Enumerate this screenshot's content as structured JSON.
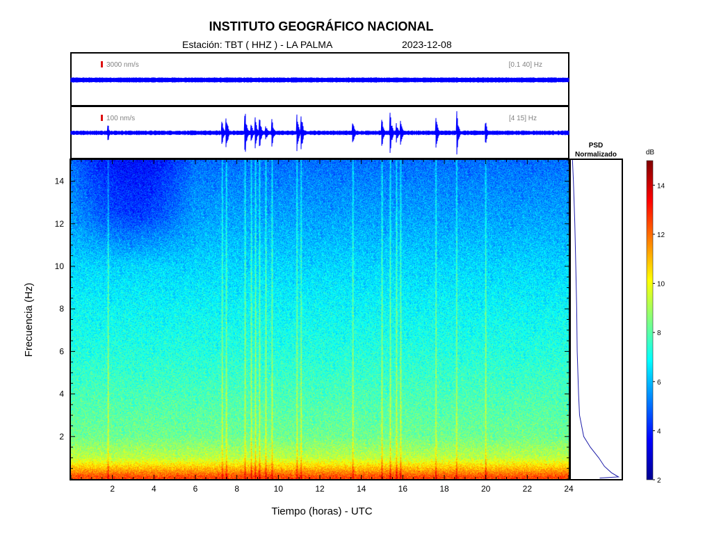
{
  "title": "INSTITUTO GEOGRÁFICO NACIONAL",
  "station_label": "Estación:  TBT ( HHZ ) - LA PALMA",
  "date": "2023-12-08",
  "chart_data": [
    {
      "type": "line",
      "panel": "waveform-broadband",
      "scale_label": "3000 nm/s",
      "filter_label": "[0.1 40] Hz",
      "series": [
        {
          "color": "#0000ff"
        }
      ]
    },
    {
      "type": "line",
      "panel": "waveform-filtered",
      "scale_label": "100 nm/s",
      "filter_label": "[4 15] Hz",
      "event_times_hours": [
        1.8,
        7.3,
        7.5,
        8.4,
        8.7,
        8.9,
        9.1,
        9.4,
        9.7,
        10.9,
        11.1,
        13.6,
        15.0,
        15.4,
        15.7,
        15.9,
        17.6,
        18.6,
        20.0
      ],
      "series": [
        {
          "color": "#0000ff"
        }
      ]
    },
    {
      "type": "heatmap",
      "panel": "spectrogram",
      "xlabel": "Tiempo (horas) - UTC",
      "ylabel": "Frecuencia  (Hz)",
      "xlim": [
        0,
        24
      ],
      "ylim": [
        0,
        15
      ],
      "x_ticks": [
        2,
        4,
        6,
        8,
        10,
        12,
        14,
        16,
        18,
        20,
        22,
        24
      ],
      "y_ticks": [
        2,
        4,
        6,
        8,
        10,
        12,
        14
      ],
      "colormap": "jet",
      "band_db": [
        {
          "f": 0.1,
          "db": 12.5
        },
        {
          "f": 0.5,
          "db": 11.0
        },
        {
          "f": 1.0,
          "db": 9.3
        },
        {
          "f": 2.0,
          "db": 8.3
        },
        {
          "f": 4.0,
          "db": 7.8
        },
        {
          "f": 6.0,
          "db": 7.3
        },
        {
          "f": 8.0,
          "db": 6.9
        },
        {
          "f": 10.0,
          "db": 6.4
        },
        {
          "f": 12.0,
          "db": 5.8
        },
        {
          "f": 14.0,
          "db": 5.3
        },
        {
          "f": 15.0,
          "db": 5.0
        }
      ],
      "quiet_period_hours": [
        0,
        6
      ],
      "event_times_hours": [
        1.8,
        7.3,
        7.5,
        8.4,
        8.7,
        8.9,
        9.1,
        9.4,
        9.7,
        10.9,
        11.1,
        13.6,
        15.0,
        15.4,
        15.7,
        15.9,
        17.6,
        18.6,
        20.0
      ]
    },
    {
      "type": "line",
      "panel": "psd",
      "title": "PSD",
      "subtitle": "Normalizado",
      "curve": [
        {
          "f": 15.0,
          "v": 0.02
        },
        {
          "f": 14.0,
          "v": 0.04
        },
        {
          "f": 12.0,
          "v": 0.07
        },
        {
          "f": 10.0,
          "v": 0.09
        },
        {
          "f": 8.0,
          "v": 0.11
        },
        {
          "f": 6.0,
          "v": 0.12
        },
        {
          "f": 4.0,
          "v": 0.15
        },
        {
          "f": 3.0,
          "v": 0.17
        },
        {
          "f": 2.0,
          "v": 0.26
        },
        {
          "f": 1.5,
          "v": 0.4
        },
        {
          "f": 1.0,
          "v": 0.58
        },
        {
          "f": 0.6,
          "v": 0.7
        },
        {
          "f": 0.3,
          "v": 0.85
        },
        {
          "f": 0.1,
          "v": 1.0
        },
        {
          "f": 0.05,
          "v": 0.6
        }
      ]
    },
    {
      "type": "colorbar",
      "label": "dB",
      "range": [
        2,
        15
      ],
      "ticks": [
        2,
        4,
        6,
        8,
        10,
        12,
        14
      ]
    }
  ]
}
